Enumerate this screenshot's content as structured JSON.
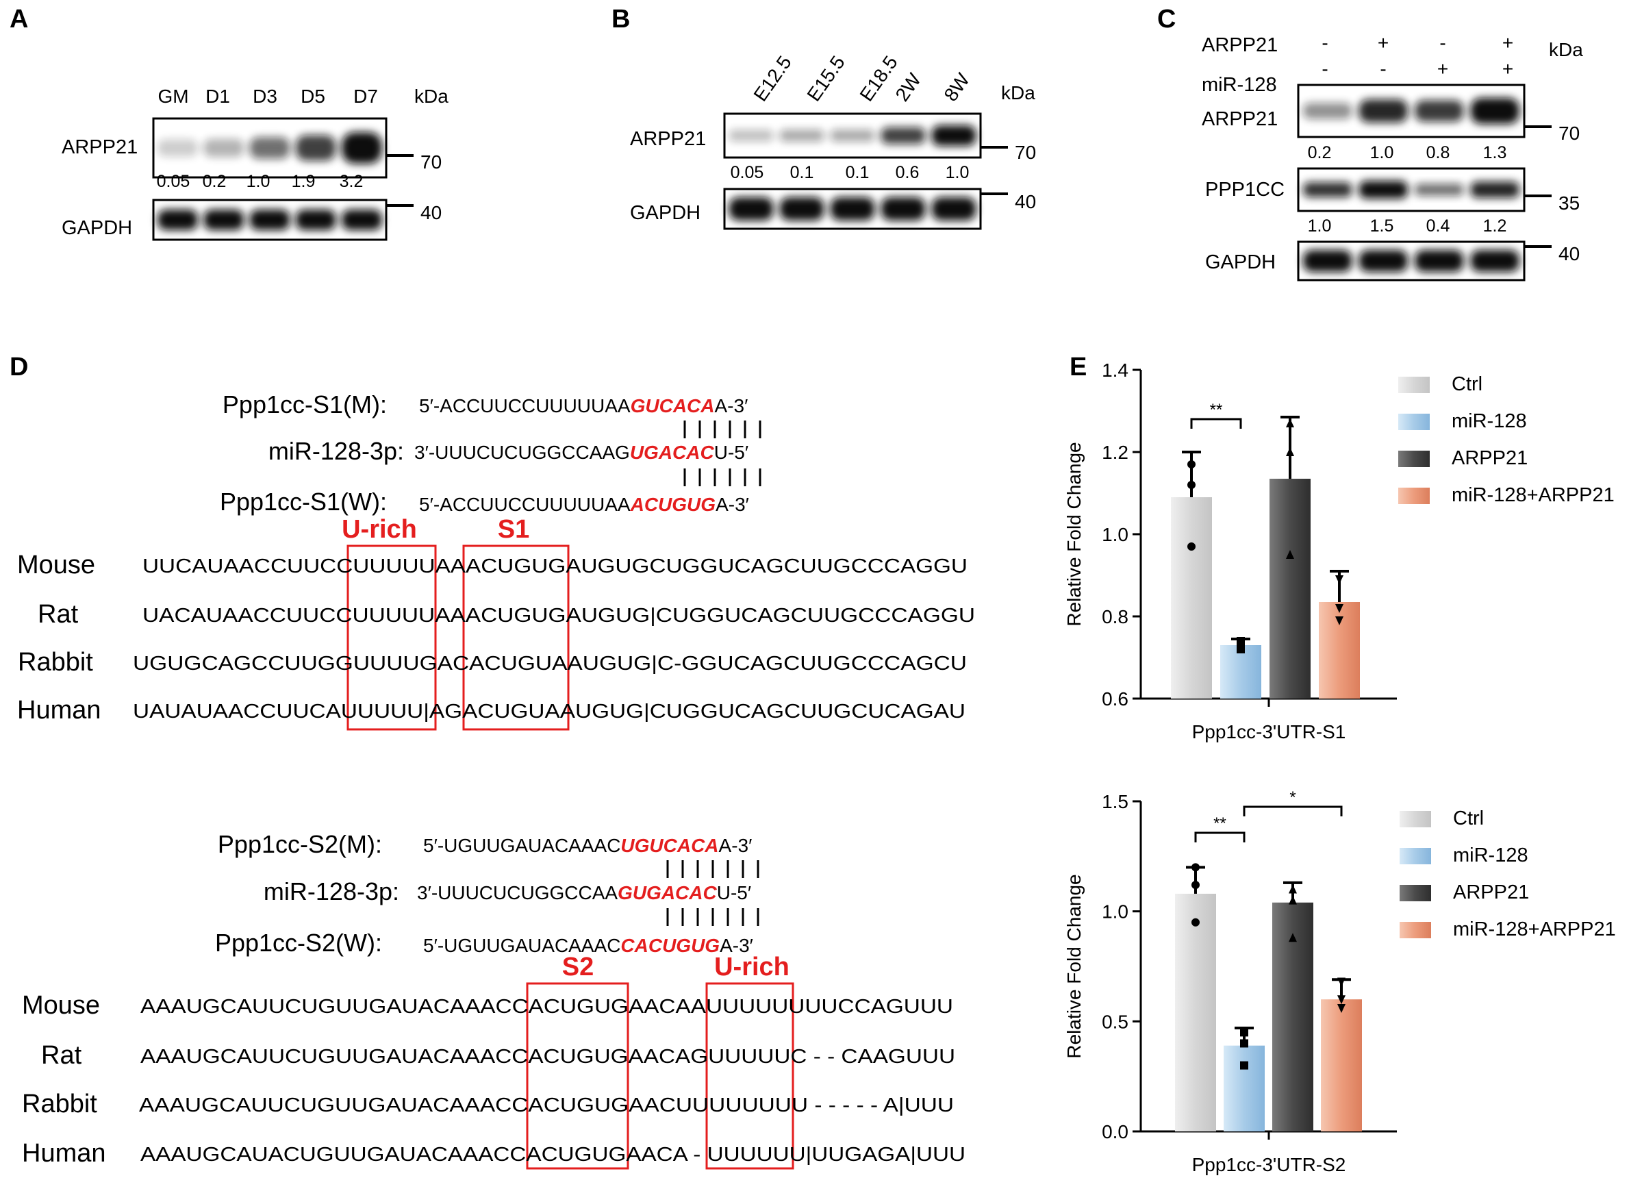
{
  "panels": {
    "a": {
      "letter": "A",
      "lanes": [
        "GM",
        "D1",
        "D3",
        "D5",
        "D7"
      ],
      "kda_label": "kDa",
      "rows": [
        {
          "label": "ARPP21",
          "marker": "70",
          "intensities": [
            0.05,
            0.2,
            1.0,
            1.9,
            3.2
          ]
        },
        {
          "label": "GAPDH",
          "marker": "40",
          "intensities": [
            1,
            1,
            1,
            1,
            1
          ]
        }
      ],
      "quant": [
        "0.05",
        "0.2",
        "1.0",
        "1.9",
        "3.2"
      ]
    },
    "b": {
      "letter": "B",
      "lanes": [
        "E12.5",
        "E15.5",
        "E18.5",
        "2W",
        "8W"
      ],
      "kda_label": "kDa",
      "rows": [
        {
          "label": "ARPP21",
          "marker": "70",
          "intensities": [
            0.05,
            0.1,
            0.1,
            0.6,
            1.0
          ]
        },
        {
          "label": "GAPDH",
          "marker": "40",
          "intensities": [
            1,
            1,
            1,
            1,
            1
          ]
        }
      ],
      "quant": [
        "0.05",
        "0.1",
        "0.1",
        "0.6",
        "1.0"
      ]
    },
    "c": {
      "letter": "C",
      "treat_rows": [
        {
          "label": "ARPP21",
          "signs": [
            "-",
            "+",
            "-",
            "+"
          ]
        },
        {
          "label": "miR-128",
          "signs": [
            "-",
            "-",
            "+",
            "+"
          ]
        }
      ],
      "kda_label": "kDa",
      "blots": [
        {
          "label": "ARPP21",
          "marker": "70",
          "intensities": [
            0.2,
            1.0,
            0.8,
            1.3
          ],
          "quant": [
            "0.2",
            "1.0",
            "0.8",
            "1.3"
          ]
        },
        {
          "label": "PPP1CC",
          "marker": "35",
          "intensities": [
            1.0,
            1.5,
            0.4,
            1.2
          ],
          "quant": [
            "1.0",
            "1.5",
            "0.4",
            "1.2"
          ]
        },
        {
          "label": "GAPDH",
          "marker": "40",
          "intensities": [
            1,
            1,
            1,
            1
          ],
          "quant": []
        }
      ]
    },
    "d": {
      "letter": "D",
      "s1": {
        "m_label": "Ppp1cc-S1(M):",
        "m_pre": "5′-ACCUUCCUUUUUAA",
        "m_hl": "GUCACA",
        "m_post": "A-3′",
        "mir_label": "miR-128-3p:",
        "mir_pre": "3′-UUUCUCUGGCCAAG",
        "mir_hl": "UGACAC",
        "mir_post": "U-5′",
        "w_label": "Ppp1cc-S1(W):",
        "w_pre": "5′-ACCUUCCUUUUUAA",
        "w_hl": "ACUGUG",
        "w_post": "A-3′",
        "box1": "U-rich",
        "box2": "S1",
        "species": [
          {
            "name": "Mouse",
            "seq": "UUCAUAACCUUCCUUUUUAAACUGUGAUGUGCUGGUCAGCUUGCCCAGGU"
          },
          {
            "name": "Rat",
            "seq": "UACAUAACCUUCCUUUUUAAACUGUGAUGUG|CUGGUCAGCUUGCCCAGGU"
          },
          {
            "name": "Rabbit",
            "seq": "UGUGCAGCCUUGGUUUUGACACUGUAAUGUG|C-GGUCAGCUUGCCCAGCU"
          },
          {
            "name": "Human",
            "seq": "UAUAUAACCUUCAUUUUU|AGACUGUAAUGUG|CUGGUCAGCUUGCUCAGAU"
          }
        ]
      },
      "s2": {
        "m_label": "Ppp1cc-S2(M):",
        "m_pre": "5′-UGUUGAUACAAAC",
        "m_hl": "UGUCACA",
        "m_post": "A-3′",
        "mir_label": "miR-128-3p:",
        "mir_pre": "3′-UUUCUCUGGCCAA",
        "mir_hl": "GUGACAC",
        "mir_post": "U-5′",
        "w_label": "Ppp1cc-S2(W):",
        "w_pre": "5′-UGUUGAUACAAAC",
        "w_hl": "CACUGUG",
        "w_post": "A-3′",
        "box1": "S2",
        "box2": "U-rich",
        "species": [
          {
            "name": "Mouse",
            "seq": "AAAUGCAUUCUGUUGAUACAAACCACUGUGAACAAUUUUUUUUCCAGUUU"
          },
          {
            "name": "Rat",
            "seq": "AAAUGCAUUCUGUUGAUACAAACCACUGUGAACAGUUUUUC - - CAAGUUU"
          },
          {
            "name": "Rabbit",
            "seq": "AAAUGCAUUCUGUUGAUACAAACCACUGUGAACUUUUUUUU - - - - - A|UUU"
          },
          {
            "name": "Human",
            "seq": "AAAUGCAUACUGUUGAUACAAACCACUGUGAACA - UUUUUU|UUGAGA|UUU"
          }
        ]
      }
    },
    "e": {
      "letter": "E",
      "legend_colors": {
        "ctrl": "#d9d9d9",
        "mir": "#a9cde8",
        "arpp": "#555555",
        "combo": "#ec9c7c"
      }
    }
  },
  "chart_data": [
    {
      "type": "bar",
      "categories": [
        "Ctrl",
        "miR-128",
        "ARPP21",
        "miR-128+ARPP21"
      ],
      "values": [
        1.09,
        0.73,
        1.135,
        0.835
      ],
      "errors": [
        0.11,
        0.015,
        0.15,
        0.075
      ],
      "points": [
        [
          1.17,
          1.12,
          0.97
        ],
        [
          0.74,
          0.72,
          0.72
        ],
        [
          1.27,
          1.2,
          0.95
        ],
        [
          0.89,
          0.82,
          0.79
        ]
      ],
      "point_marker": [
        "circle",
        "square",
        "triangle",
        "triangle-down"
      ],
      "xlabel": "Ppp1cc-3'UTR-S1",
      "ylabel": "Relative Fold Change",
      "ylim": [
        0.6,
        1.4
      ],
      "yticks": [
        "0.6",
        "0.8",
        "1.0",
        "1.2",
        "1.4"
      ],
      "yticks_values": [
        0.6,
        0.8,
        1.0,
        1.2,
        1.4
      ],
      "legend": [
        "Ctrl",
        "miR-128",
        "ARPP21",
        "miR-128+ARPP21"
      ],
      "significance": [
        {
          "from": 0,
          "to": 1,
          "label": "**"
        }
      ]
    },
    {
      "type": "bar",
      "categories": [
        "Ctrl",
        "miR-128",
        "ARPP21",
        "miR-128+ARPP21"
      ],
      "values": [
        1.08,
        0.39,
        1.04,
        0.6
      ],
      "errors": [
        0.12,
        0.08,
        0.09,
        0.09
      ],
      "points": [
        [
          1.2,
          1.12,
          0.95
        ],
        [
          0.45,
          0.4,
          0.3
        ],
        [
          1.1,
          1.05,
          0.88
        ],
        [
          0.68,
          0.6,
          0.56
        ]
      ],
      "point_marker": [
        "circle",
        "square",
        "triangle",
        "triangle-down"
      ],
      "xlabel": "Ppp1cc-3'UTR-S2",
      "ylabel": "Relative Fold Change",
      "ylim": [
        0.0,
        1.5
      ],
      "yticks": [
        "0.0",
        "0.5",
        "1.0",
        "1.5"
      ],
      "yticks_values": [
        0.0,
        0.5,
        1.0,
        1.5
      ],
      "legend": [
        "Ctrl",
        "miR-128",
        "ARPP21",
        "miR-128+ARPP21"
      ],
      "significance": [
        {
          "from": 0,
          "to": 1,
          "label": "**"
        },
        {
          "from": 1,
          "to": 3,
          "label": "*"
        }
      ]
    }
  ]
}
